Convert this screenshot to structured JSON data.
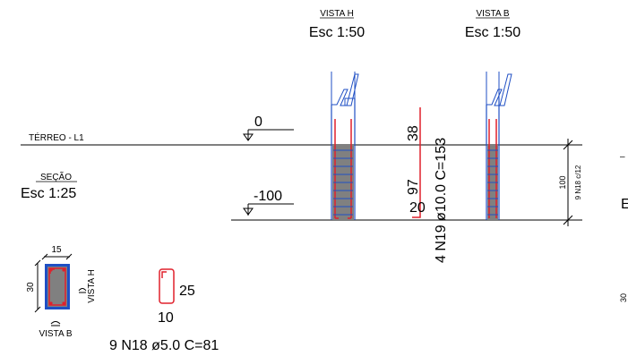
{
  "drawing": {
    "view_h": {
      "title": "VISTA H",
      "scale": "Esc 1:50"
    },
    "view_b": {
      "title": "VISTA B",
      "scale": "Esc 1:50"
    },
    "level_top": {
      "name": "TÉRREO - L1",
      "value": "0"
    },
    "level_bottom": {
      "value": "-100"
    },
    "section": {
      "title": "SEÇÃO",
      "scale": "Esc 1:25"
    },
    "section_dims": {
      "width": "15",
      "height": "30"
    },
    "section_labels": {
      "view_h": "VISTA H",
      "view_b": "VISTA B"
    },
    "main_bar": {
      "top_len": "38",
      "mid_len": "97",
      "hook_len": "20",
      "spec": "4 N19 ø10.0 C=153"
    },
    "stirrup": {
      "height": "25",
      "width": "10",
      "spec": "9 N18 ø5.0 C=81"
    },
    "depth_dim": {
      "value": "100",
      "note": "9 N18 c/12"
    },
    "edge_labels": {
      "dash": "–",
      "letter": "E",
      "small": "30"
    },
    "colors": {
      "line": "#000000",
      "rebar": "#e0202c",
      "concrete": "#808080",
      "outline": "#1f4fc4"
    }
  }
}
